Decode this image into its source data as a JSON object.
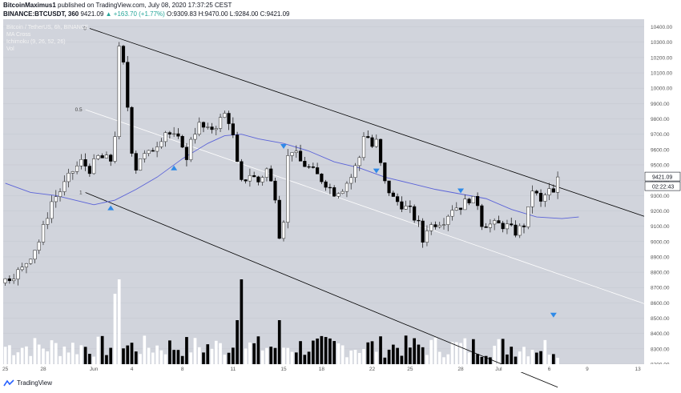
{
  "header": {
    "publisher": "BitcoinMaximus1",
    "published_text": "published on TradingView.com, July 08, 2020 17:37:25 CEST",
    "symbol": "BINANCE:BTCUSDT, 360",
    "last": "9421.09",
    "change": "▲ +163.70 (+1.77%)",
    "ohlc": "O:9309.83 H:9470.00 L:9284.00 C:9421.09"
  },
  "legend": {
    "series_title": "Bitcoin / TetherUS, 6h, BINANCE",
    "indicator_1": "MA Cross",
    "indicator_2": "Ichimoku (9, 26, 52, 26)",
    "indicator_3": "Vol"
  },
  "footer": {
    "brand": "TradingView"
  },
  "colors": {
    "background": "#d1d4dc",
    "candle_up": "#ffffff",
    "candle_down": "#000000",
    "ma_line": "#5b63d8",
    "channel": "#000000",
    "midline": "#ffffff",
    "marker": "#2f8ae8"
  },
  "chart_data": {
    "type": "candlestick",
    "x_tick_labels": [
      "25",
      "28",
      "Jun",
      "4",
      "8",
      "11",
      "15",
      "18",
      "22",
      "25",
      "28",
      "Jul",
      "6",
      "9",
      "13"
    ],
    "y_tick_labels": [
      "10400.00",
      "10300.00",
      "10200.00",
      "10100.00",
      "10000.00",
      "9900.00",
      "9800.00",
      "9700.00",
      "9600.00",
      "9500.00",
      "9400.00",
      "9300.00",
      "9200.00",
      "9100.00",
      "9000.00",
      "8900.00",
      "8800.00",
      "8700.00",
      "8600.00",
      "8500.00",
      "8400.00",
      "8300.00",
      "8200.00"
    ],
    "ylim": [
      8200,
      10450
    ],
    "last_price_label": "9421.09",
    "countdown_label": "02:22:43",
    "fib_labels": [
      "0",
      "0.5",
      "1"
    ],
    "close_path": [
      [
        0,
        8750
      ],
      [
        4,
        8820
      ],
      [
        8,
        9000
      ],
      [
        11,
        9260
      ],
      [
        13,
        9330
      ],
      [
        16,
        9460
      ],
      [
        18,
        9520
      ],
      [
        20,
        9470
      ],
      [
        22,
        9550
      ],
      [
        25,
        9530
      ],
      [
        26,
        9700
      ],
      [
        27,
        10250
      ],
      [
        28,
        10150
      ],
      [
        29,
        9880
      ],
      [
        30,
        9600
      ],
      [
        31,
        9480
      ],
      [
        32,
        9550
      ],
      [
        34,
        9570
      ],
      [
        36,
        9640
      ],
      [
        38,
        9720
      ],
      [
        40,
        9680
      ],
      [
        42,
        9640
      ],
      [
        43,
        9520
      ],
      [
        44,
        9680
      ],
      [
        46,
        9760
      ],
      [
        48,
        9720
      ],
      [
        50,
        9760
      ],
      [
        52,
        9830
      ],
      [
        53,
        9790
      ],
      [
        54,
        9680
      ],
      [
        55,
        9500
      ],
      [
        56,
        9380
      ],
      [
        58,
        9440
      ],
      [
        60,
        9390
      ],
      [
        62,
        9470
      ],
      [
        64,
        9300
      ],
      [
        65,
        9050
      ],
      [
        66,
        9150
      ],
      [
        67,
        9550
      ],
      [
        68,
        9600
      ],
      [
        70,
        9520
      ],
      [
        72,
        9480
      ],
      [
        74,
        9430
      ],
      [
        76,
        9380
      ],
      [
        78,
        9320
      ],
      [
        80,
        9350
      ],
      [
        82,
        9420
      ],
      [
        84,
        9550
      ],
      [
        85,
        9700
      ],
      [
        86,
        9680
      ],
      [
        87,
        9620
      ],
      [
        88,
        9650
      ],
      [
        89,
        9500
      ],
      [
        90,
        9380
      ],
      [
        92,
        9280
      ],
      [
        94,
        9240
      ],
      [
        96,
        9200
      ],
      [
        98,
        9110
      ],
      [
        99,
        9000
      ],
      [
        100,
        9090
      ],
      [
        102,
        9120
      ],
      [
        104,
        9140
      ],
      [
        106,
        9220
      ],
      [
        108,
        9230
      ],
      [
        110,
        9280
      ],
      [
        112,
        9250
      ],
      [
        113,
        9120
      ],
      [
        115,
        9110
      ],
      [
        117,
        9110
      ],
      [
        119,
        9100
      ],
      [
        121,
        9060
      ],
      [
        123,
        9110
      ],
      [
        124,
        9200
      ],
      [
        125,
        9340
      ],
      [
        126,
        9300
      ],
      [
        127,
        9250
      ],
      [
        128,
        9300
      ],
      [
        129,
        9330
      ],
      [
        130,
        9310
      ],
      [
        131,
        9421.09
      ]
    ],
    "x_tick_index": [
      0,
      9,
      21,
      30,
      42,
      54,
      66,
      75,
      87,
      96,
      108,
      117,
      129,
      138,
      150
    ],
    "extra_bars": 20,
    "ma_line": [
      [
        0,
        9380
      ],
      [
        6,
        9320
      ],
      [
        12,
        9300
      ],
      [
        18,
        9260
      ],
      [
        21,
        9240
      ],
      [
        26,
        9270
      ],
      [
        31,
        9340
      ],
      [
        36,
        9420
      ],
      [
        42,
        9540
      ],
      [
        48,
        9640
      ],
      [
        52,
        9690
      ],
      [
        56,
        9700
      ],
      [
        60,
        9670
      ],
      [
        66,
        9640
      ],
      [
        72,
        9590
      ],
      [
        78,
        9520
      ],
      [
        84,
        9480
      ],
      [
        90,
        9420
      ],
      [
        96,
        9380
      ],
      [
        102,
        9340
      ],
      [
        108,
        9310
      ],
      [
        114,
        9280
      ],
      [
        120,
        9210
      ],
      [
        126,
        9160
      ],
      [
        132,
        9150
      ],
      [
        136,
        9160
      ]
    ],
    "channel_top": [
      [
        20,
        10390
      ],
      [
        152,
        9160
      ]
    ],
    "channel_bottom": [
      [
        19,
        9320
      ],
      [
        131,
        8050
      ]
    ],
    "channel_mid": [
      [
        19,
        9860
      ],
      [
        152,
        8590
      ]
    ],
    "volume_scale": [
      0,
      1
    ],
    "markers": [
      {
        "i": 25,
        "value": 9220,
        "direction": "up"
      },
      {
        "i": 40,
        "value": 9480,
        "direction": "up"
      },
      {
        "i": 66,
        "value": 9620,
        "direction": "down"
      },
      {
        "i": 88,
        "value": 9460,
        "direction": "down"
      },
      {
        "i": 108,
        "value": 9330,
        "direction": "down"
      },
      {
        "i": 130,
        "value": 8520,
        "direction": "down"
      }
    ]
  }
}
